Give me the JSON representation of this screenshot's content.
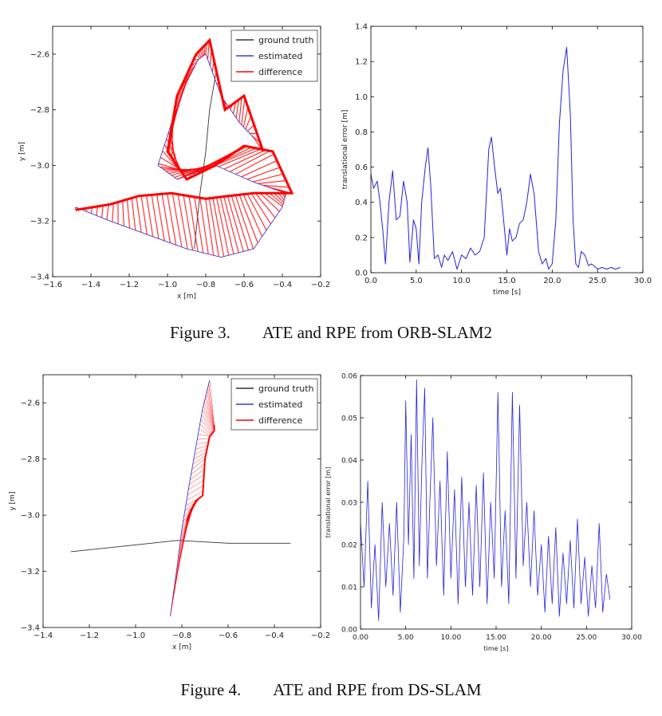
{
  "captions": {
    "fig3": {
      "number": "Figure 3.",
      "text": "ATE and RPE from ORB-SLAM2"
    },
    "fig4": {
      "number": "Figure 4.",
      "text": "ATE and RPE from DS-SLAM"
    }
  },
  "colors": {
    "ground_truth": "#333333",
    "estimated": "#3b3bd9",
    "difference": "#ff0000",
    "rpe_line": "#2323e0"
  },
  "chart_data": [
    {
      "id": "ate_orb",
      "type": "line",
      "xlabel": "x [m]",
      "ylabel": "y [m]",
      "xlim": [
        -1.6,
        -0.2
      ],
      "ylim": [
        -3.4,
        -2.5
      ],
      "xticks": [
        -1.6,
        -1.4,
        -1.2,
        -1.0,
        -0.8,
        -0.6,
        -0.4,
        -0.2
      ],
      "yticks": [
        -3.4,
        -3.2,
        -3.0,
        -2.8,
        -2.6
      ],
      "legend": {
        "position": "top-right",
        "entries": [
          "ground truth",
          "estimated",
          "difference"
        ]
      },
      "series": [
        {
          "name": "ground truth",
          "x": [
            -0.75,
            -0.78,
            -0.8,
            -0.83,
            -0.86
          ],
          "y": [
            -2.68,
            -2.8,
            -2.95,
            -3.1,
            -3.3
          ]
        },
        {
          "name": "estimated",
          "x": [
            -1.48,
            -1.3,
            -1.1,
            -0.9,
            -0.72,
            -0.55,
            -0.4,
            -0.38,
            -0.55,
            -0.75,
            -0.95,
            -1.05,
            -0.98,
            -0.9,
            -0.84,
            -0.8,
            -0.72,
            -0.62,
            -0.55
          ],
          "y": [
            -3.15,
            -3.2,
            -3.25,
            -3.3,
            -3.33,
            -3.3,
            -3.15,
            -3.1,
            -3.06,
            -3.0,
            -3.05,
            -3.0,
            -2.85,
            -2.7,
            -2.62,
            -2.6,
            -2.75,
            -2.85,
            -2.9
          ]
        },
        {
          "name": "difference",
          "x": [
            -1.48,
            -1.3,
            -1.15,
            -0.98,
            -0.8,
            -0.68,
            -0.55,
            -0.4,
            -0.35,
            -0.45,
            -0.6,
            -0.75,
            -0.9,
            -1.0,
            -0.95,
            -0.85,
            -0.78,
            -0.7,
            -0.6,
            -0.5
          ],
          "y": [
            -3.16,
            -3.14,
            -3.11,
            -3.1,
            -3.12,
            -3.11,
            -3.1,
            -3.1,
            -3.1,
            -2.95,
            -2.93,
            -3.0,
            -3.05,
            -2.95,
            -2.75,
            -2.6,
            -2.55,
            -2.8,
            -2.75,
            -2.95
          ]
        }
      ]
    },
    {
      "id": "rpe_orb",
      "type": "line",
      "xlabel": "time [s]",
      "ylabel": "translational error [m]",
      "xlim": [
        0,
        30
      ],
      "ylim": [
        0,
        1.4
      ],
      "xticks": [
        0,
        5,
        10,
        15,
        20,
        25,
        30
      ],
      "yticks": [
        0.0,
        0.2,
        0.4,
        0.6,
        0.8,
        1.0,
        1.2,
        1.4
      ],
      "series": [
        {
          "name": "",
          "x": [
            0,
            0.3,
            0.7,
            1.0,
            1.3,
            1.6,
            2.0,
            2.4,
            2.8,
            3.2,
            3.6,
            4.0,
            4.3,
            4.7,
            5.0,
            5.3,
            5.6,
            6.0,
            6.3,
            6.6,
            7.0,
            7.4,
            7.8,
            8.1,
            8.5,
            9.0,
            9.5,
            10.0,
            10.5,
            11.0,
            11.5,
            12.0,
            12.5,
            13.0,
            13.3,
            13.6,
            14.0,
            14.3,
            14.6,
            15.0,
            15.3,
            15.6,
            16.0,
            16.4,
            16.8,
            17.2,
            17.6,
            18.0,
            18.5,
            18.9,
            19.3,
            19.6,
            20.0,
            20.4,
            20.8,
            21.2,
            21.6,
            22.0,
            22.3,
            22.6,
            22.9,
            23.2,
            23.6,
            24.0,
            24.3,
            24.6,
            25.0,
            25.5,
            26.0,
            26.5,
            27.0,
            27.5
          ],
          "y": [
            0.56,
            0.48,
            0.52,
            0.4,
            0.25,
            0.05,
            0.4,
            0.58,
            0.3,
            0.32,
            0.52,
            0.4,
            0.06,
            0.3,
            0.25,
            0.05,
            0.4,
            0.6,
            0.71,
            0.5,
            0.08,
            0.1,
            0.03,
            0.1,
            0.07,
            0.12,
            0.02,
            0.1,
            0.08,
            0.14,
            0.1,
            0.12,
            0.2,
            0.7,
            0.77,
            0.62,
            0.45,
            0.48,
            0.32,
            0.1,
            0.25,
            0.18,
            0.2,
            0.28,
            0.3,
            0.4,
            0.56,
            0.45,
            0.12,
            0.05,
            0.08,
            0.02,
            0.05,
            0.3,
            0.85,
            1.15,
            1.28,
            0.9,
            0.3,
            0.05,
            0.03,
            0.12,
            0.1,
            0.04,
            0.05,
            0.04,
            0.02,
            0.03,
            0.02,
            0.03,
            0.02,
            0.03
          ]
        }
      ]
    },
    {
      "id": "ate_ds",
      "type": "line",
      "xlabel": "x [m]",
      "ylabel": "y [m]",
      "xlim": [
        -1.4,
        -0.2
      ],
      "ylim": [
        -3.4,
        -2.5
      ],
      "xticks": [
        -1.4,
        -1.2,
        -1.0,
        -0.8,
        -0.6,
        -0.4,
        -0.2
      ],
      "yticks": [
        -3.4,
        -3.2,
        -3.0,
        -2.8,
        -2.6
      ],
      "legend": {
        "position": "top-right",
        "entries": [
          "ground truth",
          "estimated",
          "difference"
        ]
      },
      "series": [
        {
          "name": "ground truth",
          "x": [
            -1.28,
            -1.05,
            -0.82,
            -0.6,
            -0.33
          ],
          "y": [
            -3.13,
            -3.11,
            -3.09,
            -3.1,
            -3.1
          ]
        },
        {
          "name": "estimated",
          "x": [
            -0.85,
            -0.82,
            -0.8,
            -0.77,
            -0.74,
            -0.71,
            -0.68
          ],
          "y": [
            -3.36,
            -3.18,
            -3.05,
            -2.9,
            -2.76,
            -2.62,
            -2.52
          ]
        },
        {
          "name": "difference",
          "x": [
            -0.78,
            -0.76,
            -0.74,
            -0.71,
            -0.7,
            -0.68,
            -0.66,
            -0.66
          ],
          "y": [
            -3.02,
            -2.98,
            -2.95,
            -2.93,
            -2.8,
            -2.72,
            -2.7,
            -2.68
          ]
        }
      ]
    },
    {
      "id": "rpe_ds",
      "type": "line",
      "xlabel": "time [s]",
      "ylabel": "translational error [m]",
      "xlim": [
        0,
        30
      ],
      "ylim": [
        0,
        0.06
      ],
      "xticks": [
        0,
        5,
        10,
        15,
        20,
        25,
        30
      ],
      "yticks": [
        0.0,
        0.01,
        0.02,
        0.03,
        0.04,
        0.05,
        0.06
      ],
      "series": [
        {
          "name": "",
          "x": [
            0,
            0.4,
            0.8,
            1.2,
            1.6,
            2.0,
            2.4,
            2.8,
            3.2,
            3.6,
            4.0,
            4.4,
            4.8,
            5.0,
            5.3,
            5.6,
            5.9,
            6.2,
            6.5,
            6.8,
            7.1,
            7.4,
            7.7,
            8.0,
            8.4,
            8.8,
            9.2,
            9.6,
            10.0,
            10.4,
            10.8,
            11.2,
            11.6,
            12.0,
            12.4,
            12.8,
            13.2,
            13.6,
            14.0,
            14.4,
            14.8,
            15.2,
            15.6,
            16.0,
            16.4,
            16.8,
            17.2,
            17.6,
            18.0,
            18.4,
            18.8,
            19.2,
            19.6,
            20.0,
            20.4,
            20.8,
            21.2,
            21.6,
            22.0,
            22.4,
            22.8,
            23.2,
            23.6,
            24.0,
            24.4,
            24.8,
            25.2,
            25.6,
            26.0,
            26.4,
            26.8,
            27.2,
            27.6
          ],
          "y": [
            0.025,
            0.01,
            0.035,
            0.005,
            0.02,
            0.002,
            0.03,
            0.01,
            0.025,
            0.008,
            0.03,
            0.004,
            0.022,
            0.054,
            0.02,
            0.046,
            0.012,
            0.059,
            0.015,
            0.04,
            0.057,
            0.012,
            0.032,
            0.05,
            0.015,
            0.035,
            0.008,
            0.042,
            0.012,
            0.033,
            0.006,
            0.036,
            0.01,
            0.03,
            0.008,
            0.034,
            0.01,
            0.037,
            0.006,
            0.03,
            0.012,
            0.056,
            0.01,
            0.028,
            0.006,
            0.056,
            0.012,
            0.053,
            0.015,
            0.03,
            0.01,
            0.028,
            0.008,
            0.02,
            0.004,
            0.022,
            0.006,
            0.024,
            0.003,
            0.018,
            0.006,
            0.021,
            0.005,
            0.026,
            0.006,
            0.017,
            0.003,
            0.015,
            0.005,
            0.025,
            0.004,
            0.013,
            0.007
          ]
        }
      ]
    }
  ]
}
